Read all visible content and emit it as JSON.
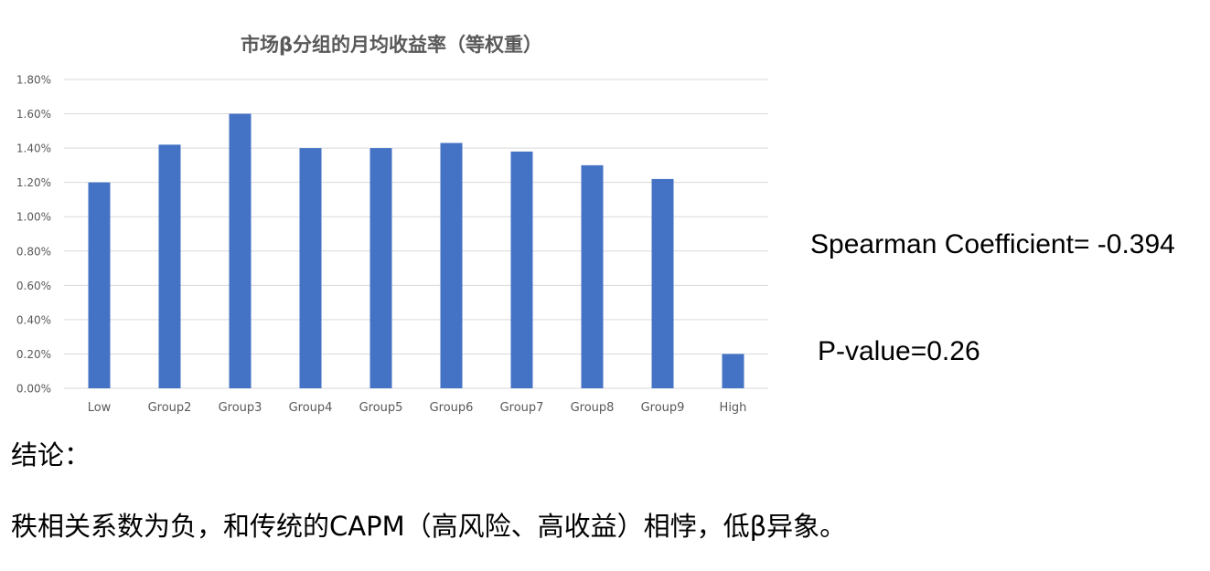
{
  "chart_data": {
    "type": "bar",
    "title": "市场β分组的月均收益率（等权重）",
    "xlabel": "",
    "ylabel": "",
    "categories": [
      "Low",
      "Group2",
      "Group3",
      "Group4",
      "Group5",
      "Group6",
      "Group7",
      "Group8",
      "Group9",
      "High"
    ],
    "values": [
      1.2,
      1.42,
      1.6,
      1.4,
      1.4,
      1.43,
      1.38,
      1.3,
      1.22,
      0.2
    ],
    "value_unit": "%",
    "ylim": [
      0,
      1.8
    ],
    "yticks": [
      "0.00%",
      "0.20%",
      "0.40%",
      "0.60%",
      "0.80%",
      "1.00%",
      "1.20%",
      "1.40%",
      "1.60%",
      "1.80%"
    ],
    "grid": true,
    "legend": "none",
    "bar_color": "#4472C4",
    "grid_color": "#D9D9D9",
    "title_color": "#595959",
    "tick_color": "#595959"
  },
  "stats": {
    "spearman": "Spearman Coefficient= -0.394",
    "pvalue": "P-value=0.26"
  },
  "conclusion": {
    "heading": "结论：",
    "body": "秩相关系数为负，和传统的CAPM（高风险、高收益）相悖，低β异象。"
  }
}
